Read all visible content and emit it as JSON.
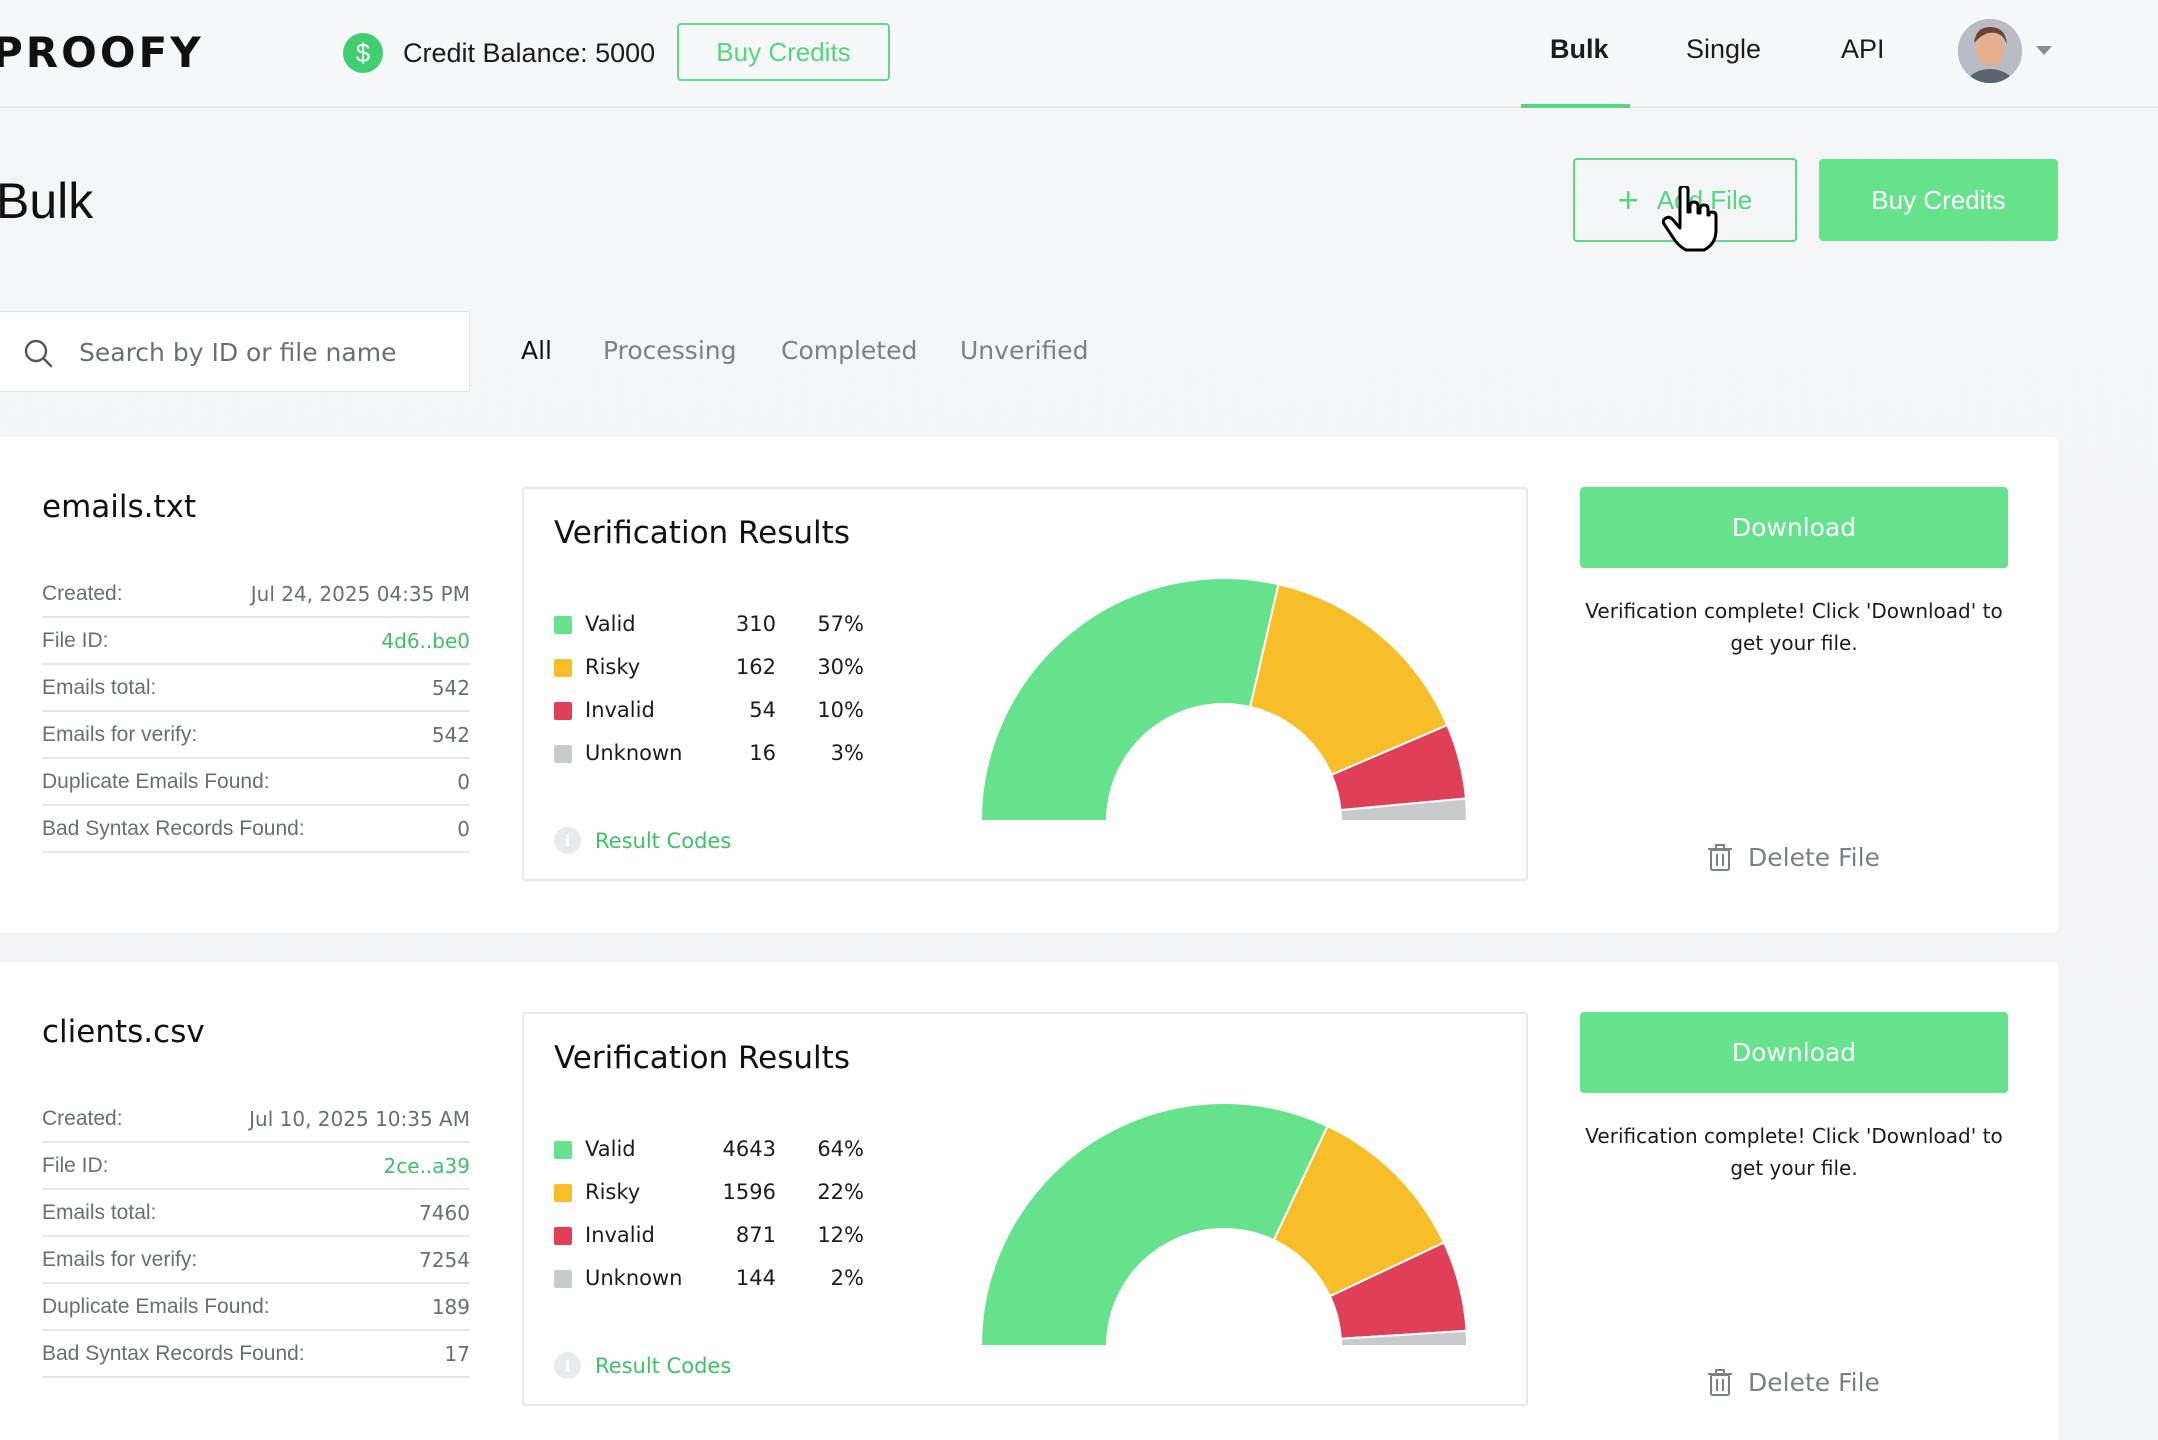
{
  "header": {
    "logo": "PROOFY",
    "credit_text": "Credit Balance: 5000",
    "buy_credits_label": "Buy Credits",
    "nav": [
      {
        "label": "Bulk",
        "active": true
      },
      {
        "label": "Single",
        "active": false
      },
      {
        "label": "API",
        "active": false
      }
    ]
  },
  "page": {
    "title": "Bulk",
    "add_file_label": "Add File",
    "buy_credits_label": "Buy Credits"
  },
  "search": {
    "placeholder": "Search by ID or file name"
  },
  "tabs": [
    {
      "label": "All",
      "active": true
    },
    {
      "label": "Processing",
      "active": false
    },
    {
      "label": "Completed",
      "active": false
    },
    {
      "label": "Unverified",
      "active": false
    }
  ],
  "colors": {
    "accent": "#66e28c",
    "valid": "#66e28c",
    "risky": "#f7be2a",
    "invalid": "#df4057",
    "unknown": "#c9cacc"
  },
  "files": [
    {
      "name": "emails.txt",
      "meta": [
        {
          "label": "Created:",
          "value": "Jul 24, 2025 04:35 PM"
        },
        {
          "label": "File ID:",
          "value": "4d6..be0",
          "link": true
        },
        {
          "label": "Emails total:",
          "value": "542"
        },
        {
          "label": "Emails for verify:",
          "value": "542"
        },
        {
          "label": "Duplicate Emails Found:",
          "value": "0"
        },
        {
          "label": "Bad Syntax Records Found:",
          "value": "0"
        }
      ],
      "results_title": "Verification Results",
      "results": [
        {
          "label": "Valid",
          "count": "310",
          "pct": "57%"
        },
        {
          "label": "Risky",
          "count": "162",
          "pct": "30%"
        },
        {
          "label": "Invalid",
          "count": "54",
          "pct": "10%"
        },
        {
          "label": "Unknown",
          "count": "16",
          "pct": "3%"
        }
      ],
      "result_codes_label": "Result Codes",
      "download_label": "Download",
      "complete_msg": "Verification complete! Click 'Download' to get your file.",
      "delete_label": "Delete File"
    },
    {
      "name": "clients.csv",
      "meta": [
        {
          "label": "Created:",
          "value": "Jul 10, 2025 10:35 AM"
        },
        {
          "label": "File ID:",
          "value": "2ce..a39",
          "link": true
        },
        {
          "label": "Emails total:",
          "value": "7460"
        },
        {
          "label": "Emails for verify:",
          "value": "7254"
        },
        {
          "label": "Duplicate Emails Found:",
          "value": "189"
        },
        {
          "label": "Bad Syntax Records Found:",
          "value": "17"
        }
      ],
      "results_title": "Verification Results",
      "results": [
        {
          "label": "Valid",
          "count": "4643",
          "pct": "64%"
        },
        {
          "label": "Risky",
          "count": "1596",
          "pct": "22%"
        },
        {
          "label": "Invalid",
          "count": "871",
          "pct": "12%"
        },
        {
          "label": "Unknown",
          "count": "144",
          "pct": "2%"
        }
      ],
      "result_codes_label": "Result Codes",
      "download_label": "Download",
      "complete_msg": "Verification complete! Click 'Download' to get your file.",
      "delete_label": "Delete File"
    }
  ],
  "icons": {
    "dollar": "dollar-icon",
    "search": "search-icon",
    "plus": "plus-icon",
    "info": "info-icon",
    "trash": "trash-icon",
    "cursor": "hand-cursor-icon",
    "caret": "chevron-down-icon"
  }
}
